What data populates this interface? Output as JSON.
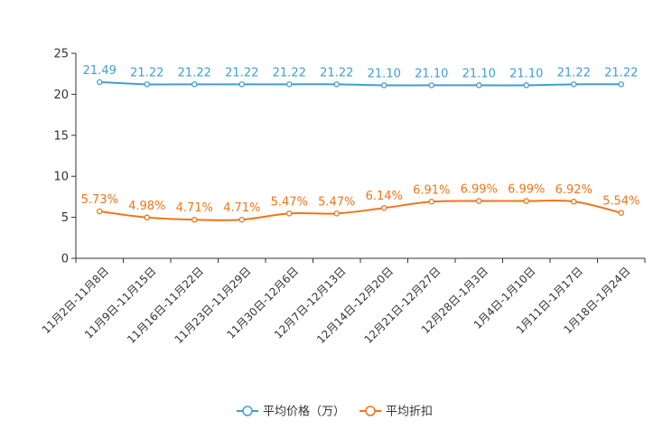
{
  "chart_data": {
    "type": "line",
    "title": "",
    "xlabel": "",
    "ylabel": "",
    "ylim": [
      0,
      25
    ],
    "yticks": [
      0,
      5,
      10,
      15,
      20,
      25
    ],
    "grid": false,
    "legend_position": "bottom-center",
    "categories": [
      "11月2日-11月8日",
      "11月9日-11月15日",
      "11月16日-11月22日",
      "11月23日-11月29日",
      "11月30日-12月6日",
      "12月7日-12月13日",
      "12月14日-12月20日",
      "12月21日-12月27日",
      "12月28日-1月3日",
      "1月4日-1月10日",
      "1月11日-1月17日",
      "1月18日-1月24日"
    ],
    "series": [
      {
        "name": "平均价格（万）",
        "color": "#3d9fd3",
        "values": [
          21.49,
          21.22,
          21.22,
          21.22,
          21.22,
          21.22,
          21.1,
          21.1,
          21.1,
          21.1,
          21.22,
          21.22
        ],
        "labels": [
          "21.49",
          "21.22",
          "21.22",
          "21.22",
          "21.22",
          "21.22",
          "21.10",
          "21.10",
          "21.10",
          "21.10",
          "21.22",
          "21.22"
        ]
      },
      {
        "name": "平均折扣",
        "color": "#f07518",
        "values": [
          5.73,
          4.98,
          4.71,
          4.71,
          5.47,
          5.47,
          6.14,
          6.91,
          6.99,
          6.99,
          6.92,
          5.54
        ],
        "labels": [
          "5.73%",
          "4.98%",
          "4.71%",
          "4.71%",
          "5.47%",
          "5.47%",
          "6.14%",
          "6.91%",
          "6.99%",
          "6.99%",
          "6.92%",
          "5.54%"
        ]
      }
    ]
  }
}
